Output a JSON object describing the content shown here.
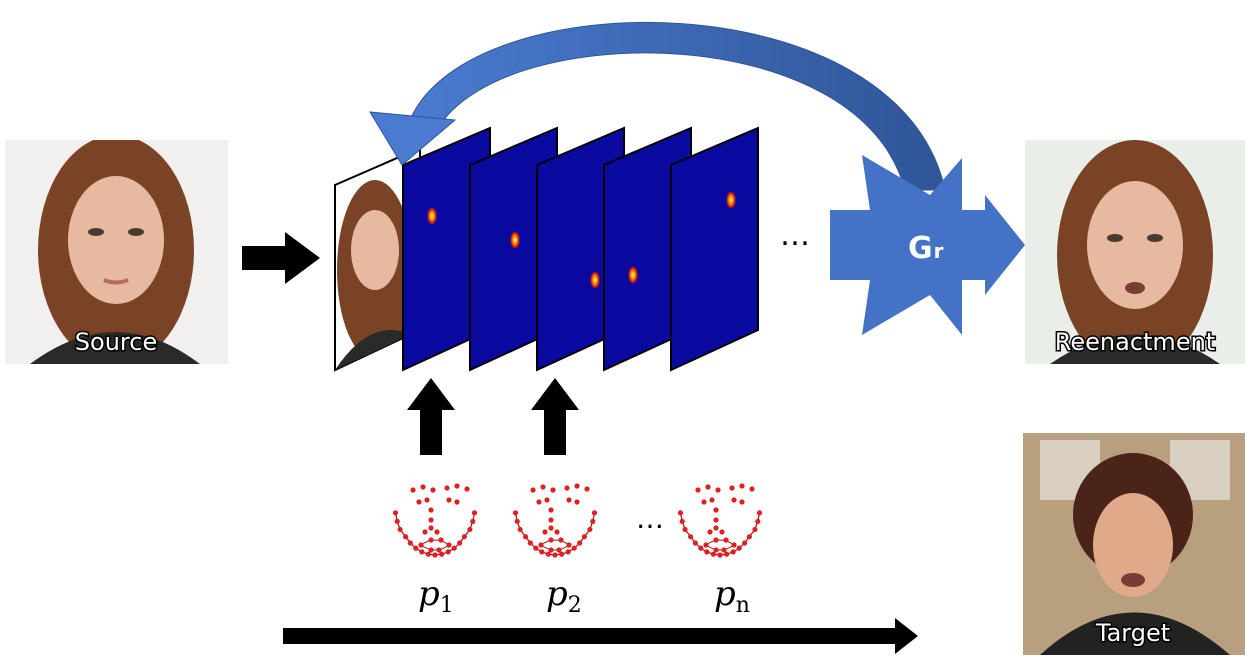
{
  "source": {
    "label": "Source"
  },
  "generator": {
    "letter": "G",
    "subscript": "r"
  },
  "reenactment": {
    "label": "Reenactment"
  },
  "target": {
    "label": "Target"
  },
  "heatmap_ellipsis": "…",
  "landmarks": [
    {
      "symbol": "p",
      "subscript": "1"
    },
    {
      "symbol": "p",
      "subscript": "2"
    },
    {
      "symbol": "p",
      "subscript": "n"
    }
  ],
  "landmark_ellipsis": "…"
}
